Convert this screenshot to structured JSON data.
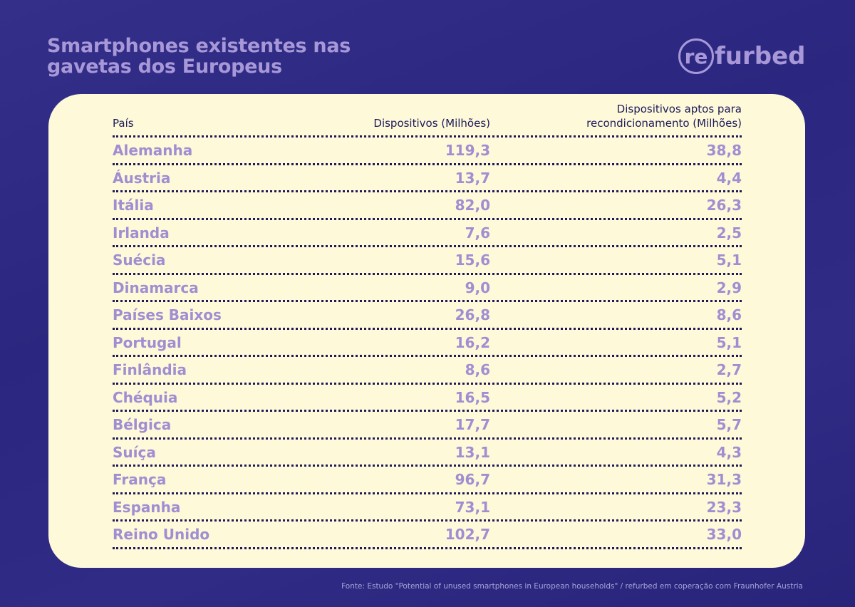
{
  "title_line1": "Smartphones existentes nas",
  "title_line2": "gavetas dos Europeus",
  "logo": {
    "circle": "re",
    "rest": "furbed"
  },
  "colors": {
    "background": "#2e2a82",
    "card": "#fdf9d9",
    "accent": "#a08ed2",
    "header_text": "#1e1a5a"
  },
  "chart_data": {
    "type": "table",
    "columns": [
      "País",
      "Dispositivos (Milhões)",
      "Dispositivos aptos para recondicionamento (Milhões)"
    ],
    "rows": [
      [
        "Alemanha",
        "119,3",
        "38,8"
      ],
      [
        "Áustria",
        "13,7",
        "4,4"
      ],
      [
        "Itália",
        "82,0",
        "26,3"
      ],
      [
        "Irlanda",
        "7,6",
        "2,5"
      ],
      [
        "Suécia",
        "15,6",
        "5,1"
      ],
      [
        "Dinamarca",
        "9,0",
        "2,9"
      ],
      [
        "Países Baixos",
        "26,8",
        "8,6"
      ],
      [
        "Portugal",
        "16,2",
        "5,1"
      ],
      [
        "Finlândia",
        "8,6",
        "2,7"
      ],
      [
        "Chéquia",
        "16,5",
        "5,2"
      ],
      [
        "Bélgica",
        "17,7",
        "5,7"
      ],
      [
        "Suíça",
        "13,1",
        "4,3"
      ],
      [
        "França",
        "96,7",
        "31,3"
      ],
      [
        "Espanha",
        "73,1",
        "23,3"
      ],
      [
        "Reino Unido",
        "102,7",
        "33,0"
      ]
    ]
  },
  "source": "Fonte: Estudo \"Potential of unused smartphones in European households\" / refurbed em coperação com Fraunhofer Austria"
}
